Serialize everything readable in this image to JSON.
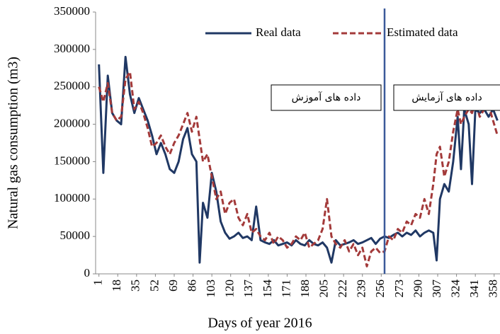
{
  "chart_data": {
    "type": "line",
    "x_label": "Days of year 2016",
    "y_label": "Natural gas consumption (m3)",
    "xlim": [
      -2,
      362
    ],
    "xticks": [
      1,
      18,
      35,
      52,
      69,
      86,
      103,
      120,
      137,
      154,
      171,
      188,
      205,
      222,
      239,
      256,
      273,
      290,
      307,
      324,
      341,
      358
    ],
    "ylim": [
      0,
      350000
    ],
    "yticks": [
      0,
      50000,
      100000,
      150000,
      200000,
      250000,
      300000,
      350000
    ],
    "grid": false,
    "divider_x": 259,
    "annotations": [
      "داده های آموزش",
      "داده های آزمایش"
    ],
    "x": [
      1,
      5,
      9,
      13,
      17,
      21,
      25,
      29,
      33,
      37,
      41,
      45,
      49,
      53,
      57,
      61,
      65,
      69,
      73,
      77,
      81,
      85,
      89,
      92,
      95,
      99,
      103,
      107,
      111,
      115,
      119,
      123,
      127,
      131,
      135,
      139,
      143,
      147,
      151,
      155,
      159,
      163,
      167,
      171,
      175,
      179,
      183,
      187,
      191,
      195,
      199,
      203,
      207,
      211,
      215,
      219,
      223,
      227,
      231,
      235,
      239,
      243,
      247,
      251,
      255,
      259,
      263,
      267,
      271,
      275,
      279,
      283,
      287,
      291,
      295,
      299,
      303,
      306,
      309,
      313,
      317,
      321,
      325,
      328,
      331,
      335,
      338,
      341,
      345,
      349,
      353,
      357,
      361
    ],
    "series": [
      {
        "name": "Real data",
        "color": "#203864",
        "dash": false,
        "values": [
          280000,
          135000,
          265000,
          215000,
          205000,
          200000,
          290000,
          240000,
          215000,
          235000,
          220000,
          205000,
          185000,
          160000,
          175000,
          160000,
          140000,
          135000,
          150000,
          180000,
          195000,
          160000,
          150000,
          15000,
          95000,
          75000,
          135000,
          110000,
          70000,
          55000,
          47000,
          50000,
          55000,
          48000,
          50000,
          45000,
          90000,
          45000,
          42000,
          40000,
          45000,
          38000,
          40000,
          42000,
          38000,
          45000,
          40000,
          38000,
          45000,
          40000,
          38000,
          42000,
          35000,
          15000,
          45000,
          38000,
          40000,
          42000,
          45000,
          40000,
          42000,
          45000,
          48000,
          40000,
          47000,
          50000,
          48000,
          52000,
          55000,
          50000,
          55000,
          52000,
          58000,
          50000,
          55000,
          58000,
          55000,
          18000,
          100000,
          120000,
          110000,
          150000,
          210000,
          140000,
          220000,
          200000,
          120000,
          220000,
          215000,
          220000,
          210000,
          220000,
          205000
        ]
      },
      {
        "name": "Estimated data",
        "color": "#a33a3a",
        "dash": true,
        "values": [
          250000,
          230000,
          255000,
          215000,
          205000,
          210000,
          260000,
          270000,
          220000,
          230000,
          215000,
          195000,
          170000,
          175000,
          185000,
          170000,
          160000,
          175000,
          185000,
          200000,
          215000,
          190000,
          210000,
          180000,
          150000,
          160000,
          130000,
          100000,
          110000,
          80000,
          95000,
          100000,
          75000,
          65000,
          80000,
          55000,
          60000,
          50000,
          45000,
          55000,
          40000,
          50000,
          45000,
          35000,
          40000,
          50000,
          45000,
          55000,
          35000,
          40000,
          45000,
          60000,
          100000,
          50000,
          40000,
          35000,
          45000,
          30000,
          40000,
          25000,
          35000,
          10000,
          30000,
          35000,
          28000,
          30000,
          50000,
          45000,
          60000,
          55000,
          70000,
          65000,
          80000,
          75000,
          100000,
          80000,
          120000,
          160000,
          170000,
          130000,
          150000,
          190000,
          220000,
          200000,
          210000,
          220000,
          215000,
          230000,
          210000,
          220000,
          225000,
          205000,
          185000
        ]
      }
    ]
  }
}
